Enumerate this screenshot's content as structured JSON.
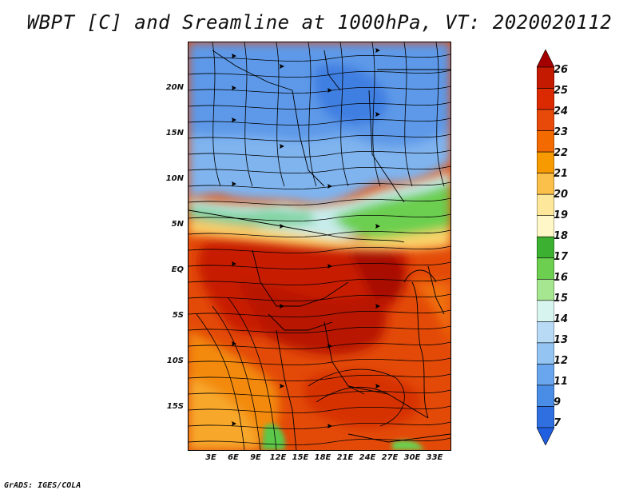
{
  "title": "WBPT [C] and Sreamline at 1000hPa, VT: 2020020112",
  "lat_labels": [
    "20N",
    "15N",
    "10N",
    "5N",
    "EQ",
    "5S",
    "10S",
    "15S"
  ],
  "lon_labels": [
    "3E",
    "6E",
    "9E",
    "12E",
    "15E",
    "18E",
    "21E",
    "24E",
    "27E",
    "30E",
    "33E"
  ],
  "colorbar": {
    "labels": [
      "26",
      "25",
      "24",
      "23",
      "22",
      "21",
      "20",
      "19",
      "18",
      "17",
      "16",
      "15",
      "14",
      "13",
      "12",
      "11",
      "9",
      "7"
    ],
    "colors": [
      "#a50000",
      "#c41a00",
      "#dc2a00",
      "#e84a0a",
      "#f36b00",
      "#f79a00",
      "#fbc04a",
      "#fde79a",
      "#fff7c7",
      "#3cb030",
      "#6ccf50",
      "#a7e690",
      "#d8f4ee",
      "#b8daf5",
      "#94c4f2",
      "#6aa6ee",
      "#4a8de6",
      "#2f6fe0",
      "#1f5fe0"
    ]
  },
  "credit": "GrADS: IGES/COLA",
  "colors": {
    "hot": "#d62800",
    "warm": "#f07000",
    "green": "#5cc84a",
    "cool": "#4b8fe8"
  }
}
